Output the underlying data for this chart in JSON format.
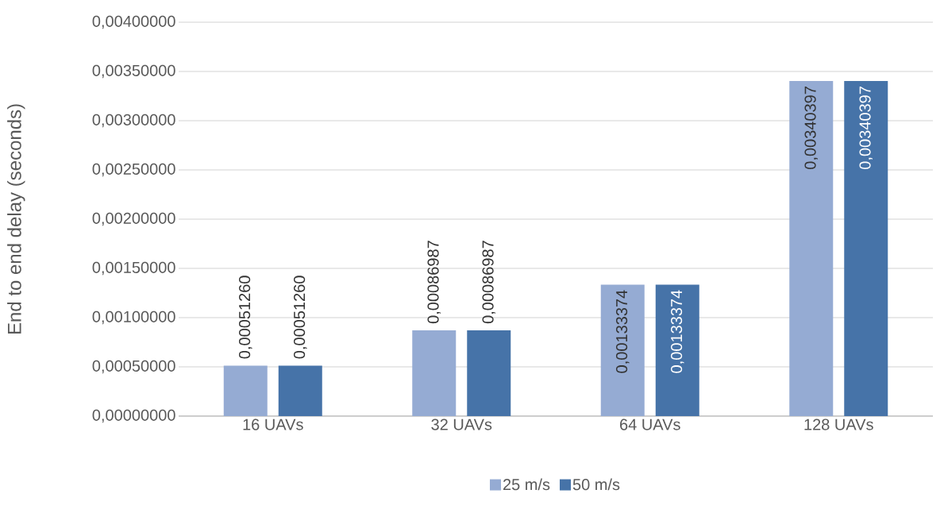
{
  "chart_data": {
    "type": "bar",
    "ylabel": "End to end delay (seconds)",
    "categories": [
      "16 UAVs",
      "32 UAVs",
      "64 UAVs",
      "128 UAVs"
    ],
    "series": [
      {
        "name": "25 m/s",
        "color": "#95abd3",
        "values": [
          0.0005126,
          0.00086987,
          0.00133374,
          0.00340397
        ],
        "value_labels": [
          "0,00051260",
          "0,00086987",
          "0,00133374",
          "0,00340397"
        ]
      },
      {
        "name": "50 m/s",
        "color": "#4673a8",
        "values": [
          0.0005126,
          0.00086987,
          0.00133374,
          0.00340397
        ],
        "value_labels": [
          "0,00051260",
          "0,00086987",
          "0,00133374",
          "0,00340397"
        ]
      }
    ],
    "ylim": [
      0,
      0.004
    ],
    "yticks": [
      {
        "value": 0,
        "label": "0,00000000"
      },
      {
        "value": 0.0005,
        "label": "0,00050000"
      },
      {
        "value": 0.001,
        "label": "0,00100000"
      },
      {
        "value": 0.0015,
        "label": "0,00150000"
      },
      {
        "value": 0.002,
        "label": "0,00200000"
      },
      {
        "value": 0.0025,
        "label": "0,00250000"
      },
      {
        "value": 0.003,
        "label": "0,00300000"
      },
      {
        "value": 0.0035,
        "label": "0,00350000"
      },
      {
        "value": 0.004,
        "label": "0,00400000"
      }
    ],
    "grid": "y",
    "legend": "bottom"
  }
}
